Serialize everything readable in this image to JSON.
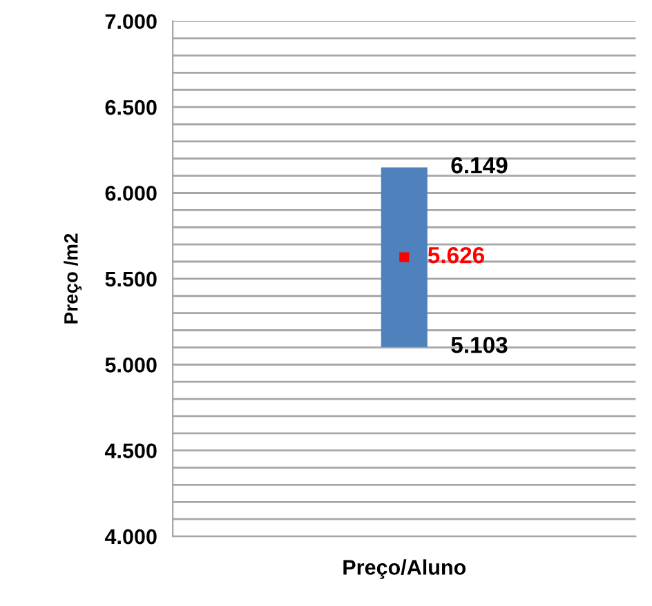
{
  "chart_data": {
    "type": "bar",
    "ylabel": "Preço /m2",
    "categories": [
      "Preço/Aluno"
    ],
    "series": [
      {
        "color": "#4f81bd",
        "values": [
          1046
        ],
        "base": [
          5103
        ]
      },
      {
        "type": "scatter",
        "color": "#ff0000",
        "marker": "square",
        "values": [
          5626
        ],
        "value_labels": [
          "5.626"
        ]
      }
    ],
    "annotations": [
      {
        "text": "6.149",
        "x": "Preço/Aluno",
        "y": 6149
      },
      {
        "text": "5.103",
        "x": "Preço/Aluno",
        "y": 5103
      }
    ],
    "ylim": [
      4000,
      7000
    ],
    "yticks": [
      {
        "value": 4000,
        "label": "4.000"
      },
      {
        "value": 4100,
        "label": null
      },
      {
        "value": 4200,
        "label": null
      },
      {
        "value": 4300,
        "label": null
      },
      {
        "value": 4400,
        "label": null
      },
      {
        "value": 4500,
        "label": "4.500"
      },
      {
        "value": 4600,
        "label": null
      },
      {
        "value": 4700,
        "label": null
      },
      {
        "value": 4800,
        "label": null
      },
      {
        "value": 4900,
        "label": null
      },
      {
        "value": 5000,
        "label": "5.000"
      },
      {
        "value": 5100,
        "label": null
      },
      {
        "value": 5200,
        "label": null
      },
      {
        "value": 5300,
        "label": null
      },
      {
        "value": 5400,
        "label": null
      },
      {
        "value": 5500,
        "label": "5.500"
      },
      {
        "value": 5600,
        "label": null
      },
      {
        "value": 5700,
        "label": null
      },
      {
        "value": 5800,
        "label": null
      },
      {
        "value": 5900,
        "label": null
      },
      {
        "value": 6000,
        "label": "6.000"
      },
      {
        "value": 6100,
        "label": null
      },
      {
        "value": 6200,
        "label": null
      },
      {
        "value": 6300,
        "label": null
      },
      {
        "value": 6400,
        "label": null
      },
      {
        "value": 6500,
        "label": "6.500"
      },
      {
        "value": 6600,
        "label": null
      },
      {
        "value": 6700,
        "label": null
      },
      {
        "value": 6800,
        "label": null
      },
      {
        "value": 6900,
        "label": null
      },
      {
        "value": 7000,
        "label": "7.000"
      }
    ],
    "grid": "y"
  }
}
